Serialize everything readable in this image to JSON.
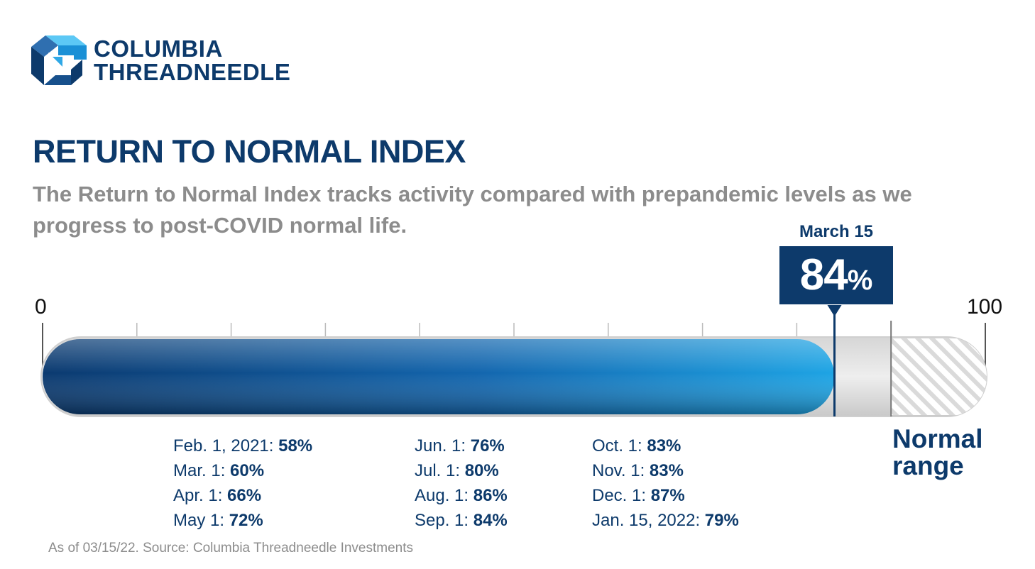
{
  "brand": {
    "line1": "COLUMBIA",
    "line2": "THREADNEEDLE"
  },
  "title": "RETURN TO NORMAL INDEX",
  "subtitle": "The Return to Normal Index tracks activity compared with prepandemic levels as we progress to post-COVID normal life.",
  "callout": {
    "date": "March 15",
    "value": "84",
    "unit": "%"
  },
  "normal_range_label": {
    "line1": "Normal",
    "line2": "range"
  },
  "history": [
    {
      "label": "Feb. 1, 2021: ",
      "value": "58%"
    },
    {
      "label": "Mar. 1: ",
      "value": "60%"
    },
    {
      "label": "Apr. 1: ",
      "value": "66%"
    },
    {
      "label": "May 1: ",
      "value": "72%"
    },
    {
      "label": "Jun. 1: ",
      "value": "76%"
    },
    {
      "label": "Jul. 1: ",
      "value": "80%"
    },
    {
      "label": "Aug. 1: ",
      "value": "86%"
    },
    {
      "label": "Sep. 1: ",
      "value": "84%"
    },
    {
      "label": "Oct. 1: ",
      "value": "83%"
    },
    {
      "label": "Nov. 1: ",
      "value": "83%"
    },
    {
      "label": "Dec. 1: ",
      "value": "87%"
    },
    {
      "label": "Jan. 15, 2022: ",
      "value": "79%"
    }
  ],
  "source": "As of 03/15/22. Source: Columbia Threadneedle Investments",
  "colors": {
    "navy": "#0d3a6b",
    "blue_light": "#1a9ee0",
    "gray_text": "#8c8c8c"
  },
  "chart_data": {
    "type": "bar",
    "title": "RETURN TO NORMAL INDEX",
    "xlim": [
      0,
      100
    ],
    "tick_labels": [
      "0",
      "100"
    ],
    "minor_ticks": [
      10,
      20,
      30,
      40,
      50,
      60,
      70,
      80,
      90
    ],
    "current": {
      "date": "March 15",
      "value": 84
    },
    "normal_range": [
      90,
      100
    ],
    "series": [
      {
        "categories": [
          "Feb. 1, 2021",
          "Mar. 1",
          "Apr. 1",
          "May 1",
          "Jun. 1",
          "Jul. 1",
          "Aug. 1",
          "Sep. 1",
          "Oct. 1",
          "Nov. 1",
          "Dec. 1",
          "Jan. 15, 2022"
        ],
        "values": [
          58,
          60,
          66,
          72,
          76,
          80,
          86,
          84,
          83,
          83,
          87,
          79
        ]
      }
    ],
    "grid": false,
    "legend": "none"
  }
}
